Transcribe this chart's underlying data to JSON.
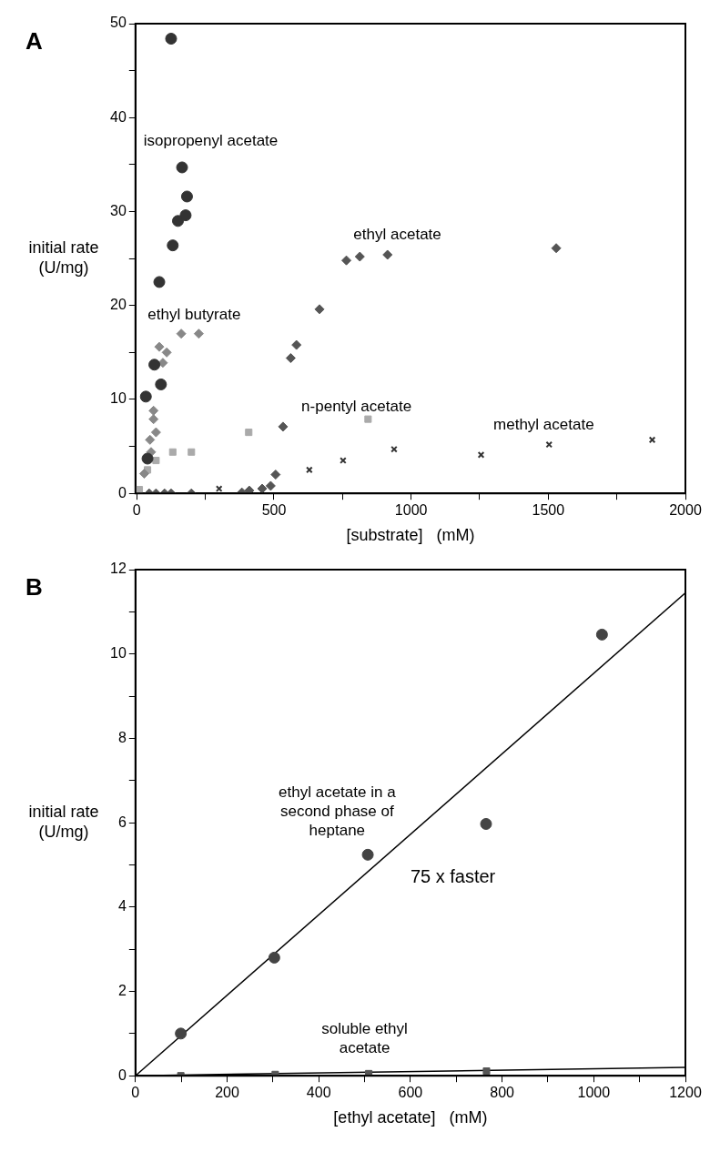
{
  "chart_data": [
    {
      "type": "scatter",
      "title": "A",
      "xlabel": "[substrate]   (mM)",
      "ylabel": "initial rate (U/mg)",
      "xlim": [
        -5,
        2000
      ],
      "ylim": [
        0,
        50
      ],
      "xticks": [
        0,
        {
          "value": 250,
          "label": null
        },
        500,
        {
          "value": 750,
          "label": null
        },
        1000,
        {
          "value": 1250,
          "label": null
        },
        1500,
        {
          "value": 1750,
          "label": null
        },
        2000
      ],
      "yticks": [
        0,
        {
          "value": 5,
          "label": null
        },
        10,
        {
          "value": 15,
          "label": null
        },
        20,
        {
          "value": 25,
          "label": null
        },
        30,
        {
          "value": 35,
          "label": null
        },
        40,
        {
          "value": 45,
          "label": null
        },
        50
      ],
      "grid": false,
      "legend": false,
      "series": [
        {
          "name": "isopropenyl acetate",
          "color": "#333333",
          "marker": "circle",
          "x": [
            33,
            39,
            64,
            82,
            88,
            125,
            131,
            150,
            165,
            178,
            183
          ],
          "values": [
            10.3,
            3.7,
            13.7,
            22.5,
            11.6,
            48.4,
            26.4,
            29.0,
            34.7,
            29.6,
            31.6
          ]
        },
        {
          "name": "ethyl butyrate",
          "color": "#888888",
          "marker": "diamond",
          "x": [
            27,
            48,
            52,
            61,
            61,
            70,
            82,
            95,
            109,
            162,
            226
          ],
          "values": [
            2.1,
            5.7,
            4.4,
            7.9,
            8.8,
            6.5,
            15.6,
            13.9,
            15.0,
            17.0,
            17.0
          ]
        },
        {
          "name": "ethyl acetate",
          "color": "#555555",
          "marker": "diamond",
          "x": [
            45,
            70,
            101,
            125,
            199,
            383,
            410,
            457,
            488,
            506,
            533,
            561,
            582,
            666,
            764,
            813,
            914,
            1529
          ],
          "values": [
            0,
            0,
            0,
            0,
            0,
            0.1,
            0.3,
            0.5,
            0.8,
            2.0,
            7.1,
            14.4,
            15.8,
            19.6,
            24.8,
            25.2,
            25.4,
            26.1
          ]
        },
        {
          "name": "n-pentyl acetate",
          "color": "#aaaaaa",
          "marker": "square",
          "x": [
            9,
            39,
            70,
            131,
            199,
            408,
            843
          ],
          "values": [
            0.4,
            2.5,
            3.5,
            4.4,
            4.4,
            6.5,
            7.9
          ]
        },
        {
          "name": "methyl acetate",
          "color": "#333333",
          "marker": "cross",
          "x": [
            300,
            629,
            752,
            938,
            1255,
            1503,
            1879
          ],
          "values": [
            0.5,
            2.5,
            3.5,
            4.7,
            4.1,
            5.2,
            5.7
          ]
        }
      ]
    },
    {
      "type": "scatter",
      "title": "B",
      "xlabel": "[ethyl acetate]   (mM)",
      "ylabel": "initial rate (U/mg)",
      "xlim": [
        0,
        1200
      ],
      "ylim": [
        0,
        12
      ],
      "xticks": [
        0,
        {
          "value": 100,
          "label": null
        },
        200,
        {
          "value": 300,
          "label": null
        },
        400,
        {
          "value": 500,
          "label": null
        },
        600,
        {
          "value": 700,
          "label": null
        },
        800,
        {
          "value": 900,
          "label": null
        },
        1000,
        {
          "value": 1100,
          "label": null
        },
        1200
      ],
      "yticks": [
        0,
        {
          "value": 1,
          "label": null
        },
        2,
        {
          "value": 3,
          "label": null
        },
        4,
        {
          "value": 5,
          "label": null
        },
        6,
        {
          "value": 7,
          "label": null
        },
        8,
        {
          "value": 9,
          "label": null
        },
        10,
        {
          "value": 11,
          "label": null
        },
        12
      ],
      "grid": false,
      "legend": false,
      "annotations": [
        "75 x faster"
      ],
      "series": [
        {
          "name": "ethyl acetate in a second phase of heptane",
          "color": "#444444",
          "marker": "circle",
          "x": [
            99,
            303,
            507,
            765,
            1018
          ],
          "values": [
            1.0,
            2.8,
            5.24,
            5.97,
            10.46
          ]
        },
        {
          "name": "soluble ethyl acetate",
          "color": "#555555",
          "marker": "square",
          "x": [
            99,
            305,
            509,
            766
          ],
          "values": [
            0.0,
            0.03,
            0.05,
            0.11
          ]
        },
        {
          "type": "line",
          "color": "#000000",
          "marker": "none",
          "line_style": "solid",
          "x": [
            0,
            1200
          ],
          "values": [
            0,
            11.45
          ]
        },
        {
          "type": "line",
          "color": "#000000",
          "marker": "none",
          "line_style": "solid",
          "x": [
            0,
            1200
          ],
          "values": [
            0,
            0.2
          ]
        }
      ]
    }
  ]
}
